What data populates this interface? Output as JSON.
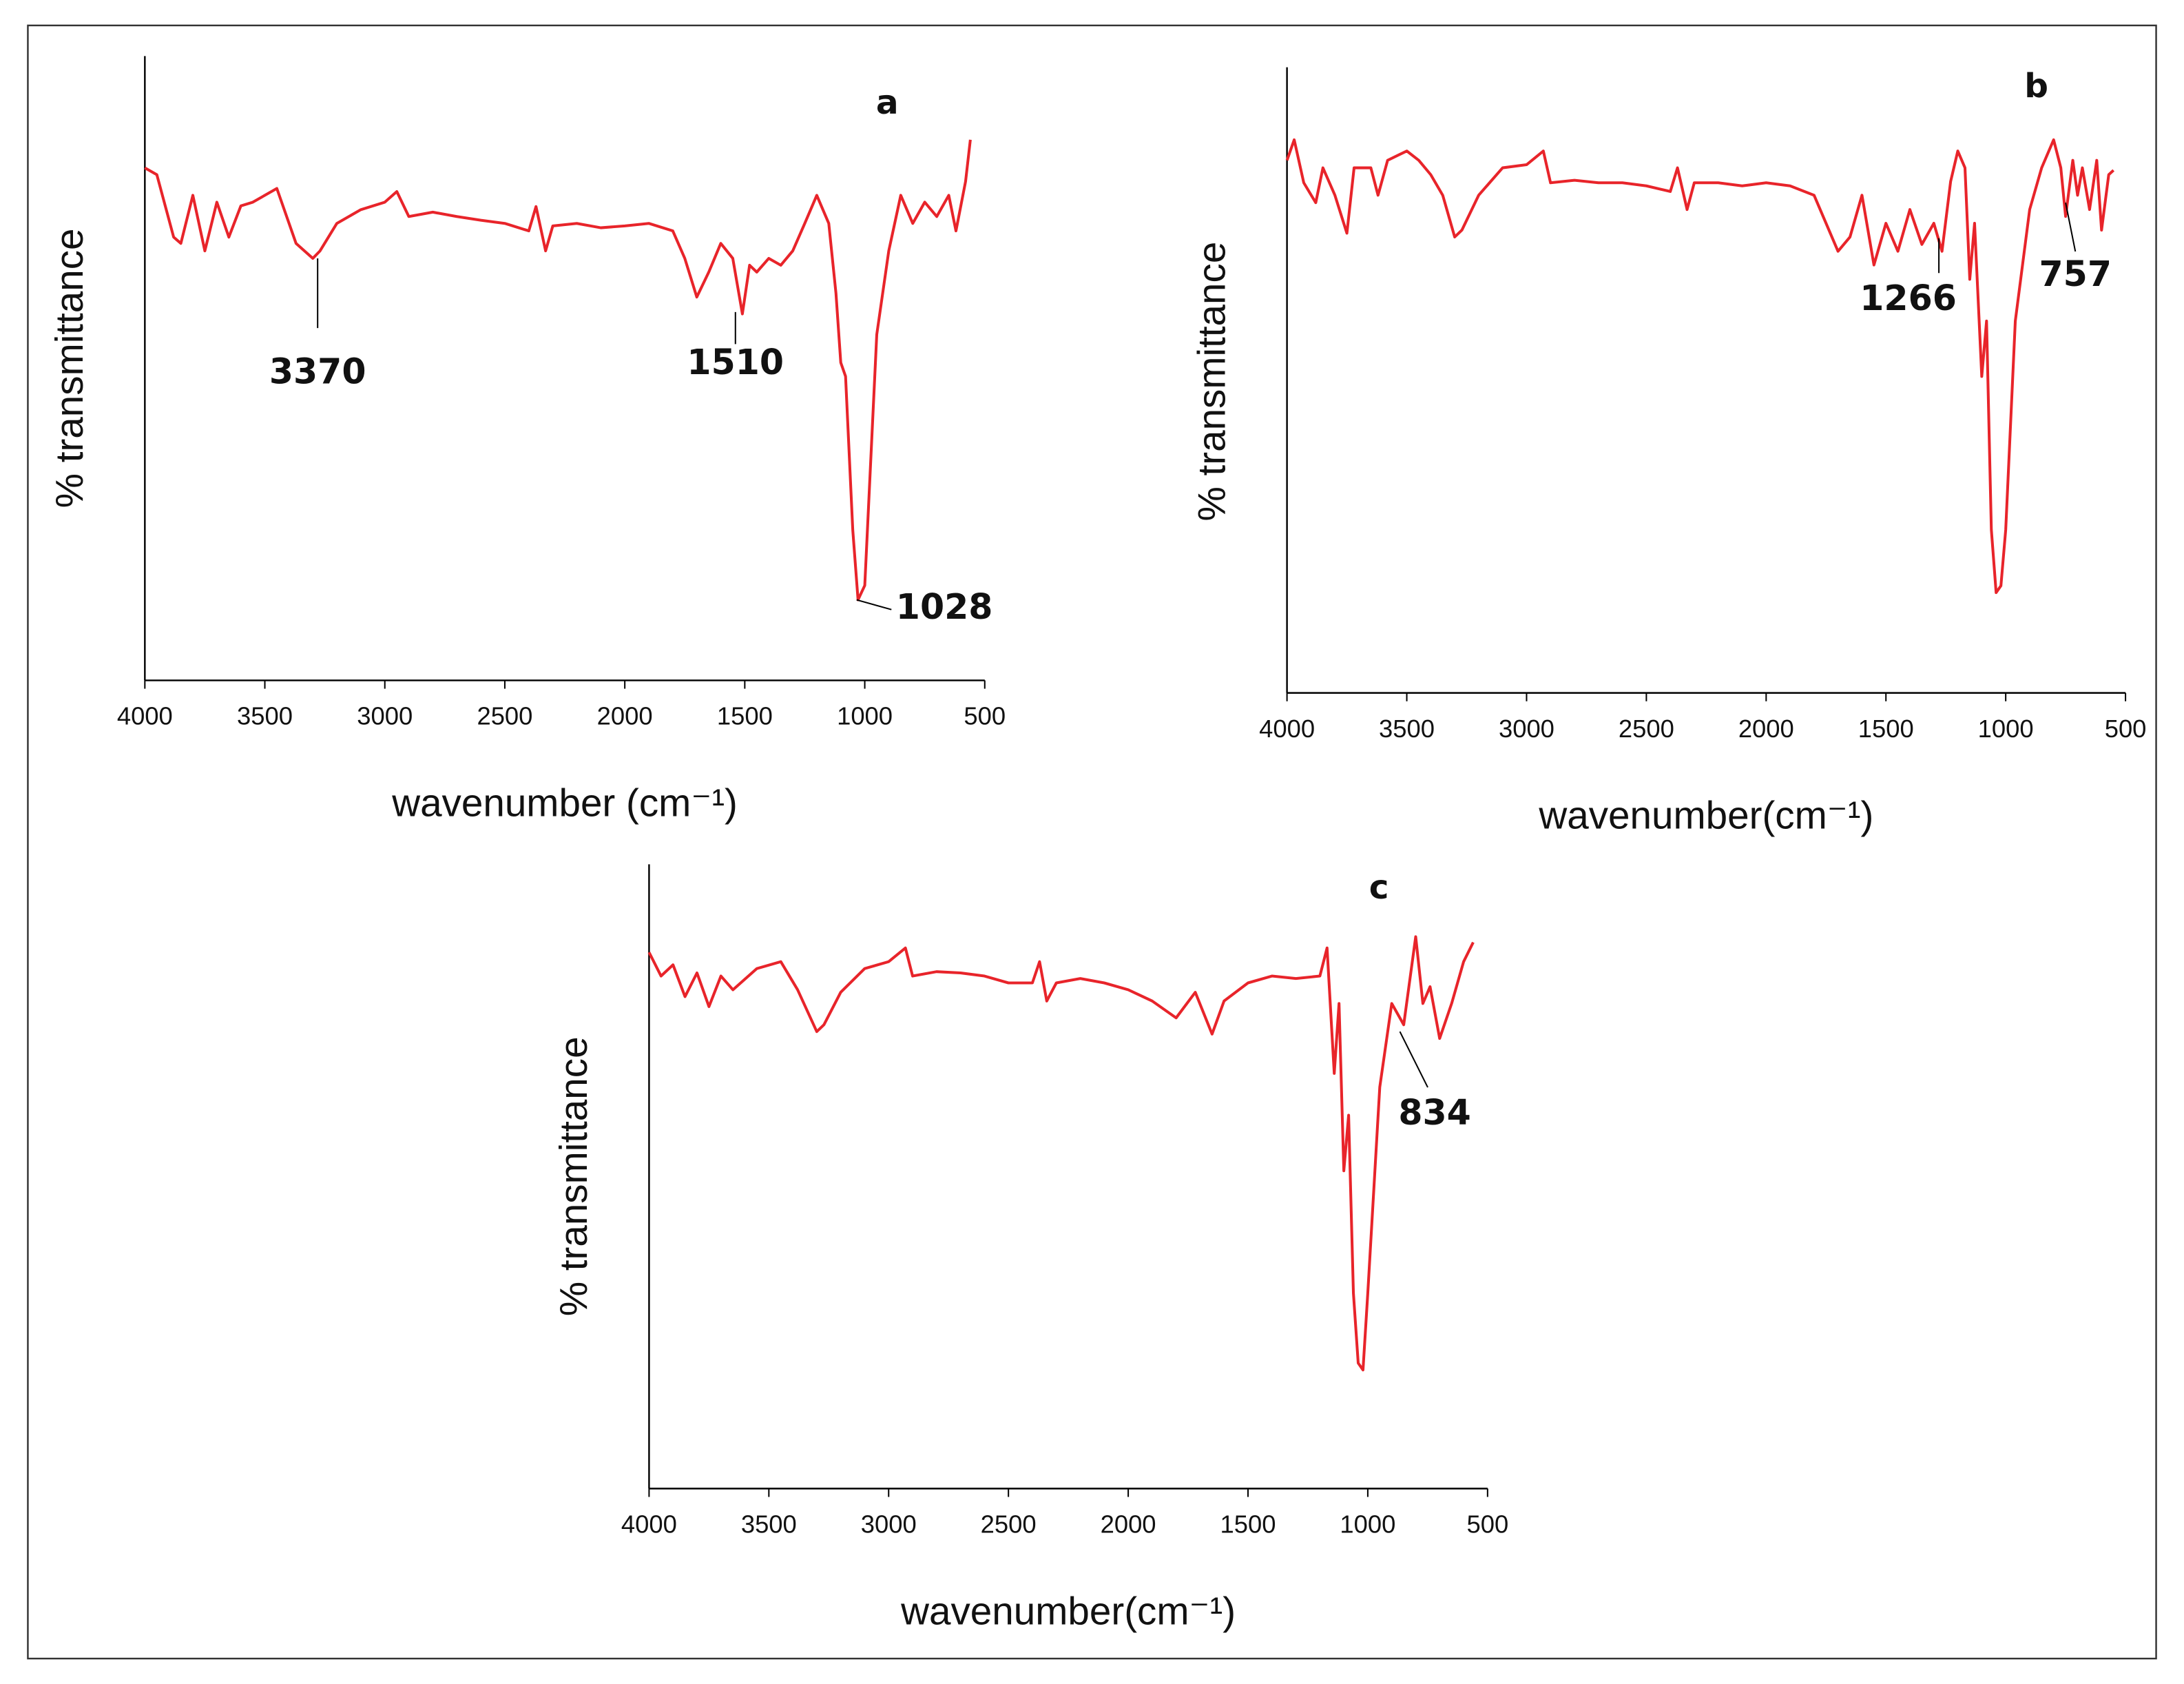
{
  "chart_data": [
    {
      "type": "line",
      "label": "a",
      "x_label": "wavenumber (cm⁻¹)",
      "y_label": "% transmittance",
      "xlim": [
        4000,
        500
      ],
      "xticks": [
        4000,
        3500,
        3000,
        2500,
        2000,
        1500,
        1000,
        500
      ],
      "ylim": [
        0,
        100
      ],
      "color": "#e8242a",
      "x": [
        4000,
        3950,
        3880,
        3850,
        3800,
        3750,
        3700,
        3650,
        3600,
        3550,
        3450,
        3370,
        3300,
        3270,
        3200,
        3100,
        3000,
        2950,
        2900,
        2800,
        2700,
        2600,
        2500,
        2400,
        2370,
        2330,
        2300,
        2200,
        2100,
        2000,
        1900,
        1800,
        1750,
        1700,
        1650,
        1600,
        1550,
        1510,
        1480,
        1450,
        1400,
        1350,
        1300,
        1250,
        1200,
        1150,
        1120,
        1100,
        1080,
        1050,
        1028,
        1000,
        950,
        900,
        850,
        800,
        750,
        700,
        650,
        620,
        580,
        560
      ],
      "values": [
        82.1,
        81,
        71,
        70,
        77.7,
        68.8,
        76.6,
        71,
        76,
        76.6,
        78.8,
        70,
        67.6,
        68.8,
        73.2,
        75.4,
        76.6,
        78.3,
        74.3,
        75,
        74.3,
        73.7,
        73.2,
        72,
        75.9,
        68.8,
        72.8,
        73.2,
        72.5,
        72.8,
        73.2,
        72,
        67.6,
        61.4,
        65.4,
        70,
        67.6,
        58.7,
        66.5,
        65.4,
        67.6,
        66.5,
        68.8,
        73.2,
        77.7,
        73.2,
        62,
        50.9,
        48.7,
        24.1,
        12.9,
        15.2,
        55.4,
        68.8,
        77.7,
        73.2,
        76.6,
        74.3,
        77.7,
        72,
        79.9,
        86.6
      ],
      "annotations": [
        {
          "text": "3370",
          "x": 3280,
          "y": 67.6
        },
        {
          "text": "1510",
          "x": 1539,
          "y": 59
        },
        {
          "text": "1028",
          "x": 1034,
          "y": 12.9
        }
      ]
    },
    {
      "type": "line",
      "label": "b",
      "x_label": "wavenumber(cm⁻¹)",
      "y_label": "% transmittance",
      "xlim": [
        4000,
        500
      ],
      "xticks": [
        4000,
        3500,
        3000,
        2500,
        2000,
        1500,
        1000,
        500
      ],
      "ylim": [
        0,
        100
      ],
      "color": "#e8242a",
      "x": [
        4000,
        3970,
        3930,
        3880,
        3850,
        3800,
        3750,
        3720,
        3650,
        3620,
        3580,
        3500,
        3450,
        3400,
        3350,
        3300,
        3270,
        3200,
        3100,
        3000,
        2930,
        2900,
        2800,
        2700,
        2600,
        2500,
        2400,
        2370,
        2330,
        2300,
        2200,
        2100,
        2000,
        1900,
        1800,
        1700,
        1650,
        1600,
        1550,
        1500,
        1450,
        1400,
        1350,
        1300,
        1266,
        1230,
        1200,
        1170,
        1150,
        1130,
        1100,
        1080,
        1060,
        1040,
        1020,
        1000,
        960,
        900,
        850,
        800,
        770,
        750,
        720,
        700,
        680,
        650,
        620,
        600,
        570,
        550
      ],
      "values": [
        85.5,
        88.8,
        81.9,
        78.7,
        84.3,
        79.9,
        73.8,
        84.3,
        84.3,
        79.9,
        85.5,
        87,
        85.5,
        83.2,
        79.9,
        73.2,
        74.3,
        79.9,
        84.3,
        84.8,
        87,
        81.9,
        82.3,
        81.9,
        81.9,
        81.4,
        80.5,
        84.3,
        77.6,
        81.9,
        81.9,
        81.4,
        81.9,
        81.4,
        79.9,
        70.9,
        73.2,
        79.9,
        68.7,
        75.4,
        70.9,
        77.6,
        72,
        75.4,
        70.9,
        82.1,
        87,
        84.3,
        66.4,
        75.4,
        50.8,
        59.7,
        26.2,
        16.1,
        17.2,
        26.2,
        59.7,
        77.6,
        84.3,
        88.8,
        84.3,
        76.5,
        85.5,
        79.9,
        84.3,
        77.6,
        85.5,
        74.3,
        83.2,
        83.9
      ],
      "annotations": [
        {
          "text": "1266",
          "x": 1279,
          "y": 73
        },
        {
          "text": "757",
          "x": 750,
          "y": 78.7
        }
      ]
    },
    {
      "type": "line",
      "label": "c",
      "x_label": "wavenumber(cm⁻¹)",
      "y_label": "% transmittance",
      "xlim": [
        4000,
        500
      ],
      "xticks": [
        4000,
        3500,
        3000,
        2500,
        2000,
        1500,
        1000,
        500
      ],
      "ylim": [
        0,
        100
      ],
      "color": "#e8242a",
      "x": [
        4000,
        3950,
        3900,
        3850,
        3800,
        3750,
        3700,
        3650,
        3550,
        3450,
        3380,
        3300,
        3270,
        3200,
        3100,
        3000,
        2930,
        2900,
        2800,
        2700,
        2600,
        2500,
        2400,
        2370,
        2340,
        2300,
        2200,
        2100,
        2000,
        1900,
        1800,
        1720,
        1650,
        1600,
        1500,
        1400,
        1300,
        1200,
        1170,
        1140,
        1120,
        1100,
        1080,
        1060,
        1040,
        1020,
        1000,
        950,
        900,
        850,
        800,
        770,
        740,
        700,
        650,
        600,
        560
      ],
      "values": [
        85.9,
        82.1,
        83.9,
        78.8,
        82.6,
        77.2,
        82.1,
        79.9,
        83.3,
        84.4,
        79.9,
        73.2,
        74.3,
        79.5,
        83.3,
        84.4,
        86.6,
        82.1,
        82.8,
        82.6,
        82.1,
        81,
        81,
        84.4,
        78.1,
        81,
        81.7,
        81,
        79.9,
        78.1,
        75.4,
        79.5,
        72.8,
        78.1,
        81,
        82.1,
        81.7,
        82.1,
        86.6,
        66.5,
        77.7,
        50.9,
        59.8,
        31.3,
        20.1,
        19,
        31.3,
        64.3,
        77.7,
        74.3,
        88.4,
        77.7,
        80.4,
        72.1,
        77.7,
        84.4,
        87.5
      ],
      "annotations": [
        {
          "text": "834",
          "x": 866,
          "y": 73.2
        }
      ]
    }
  ]
}
